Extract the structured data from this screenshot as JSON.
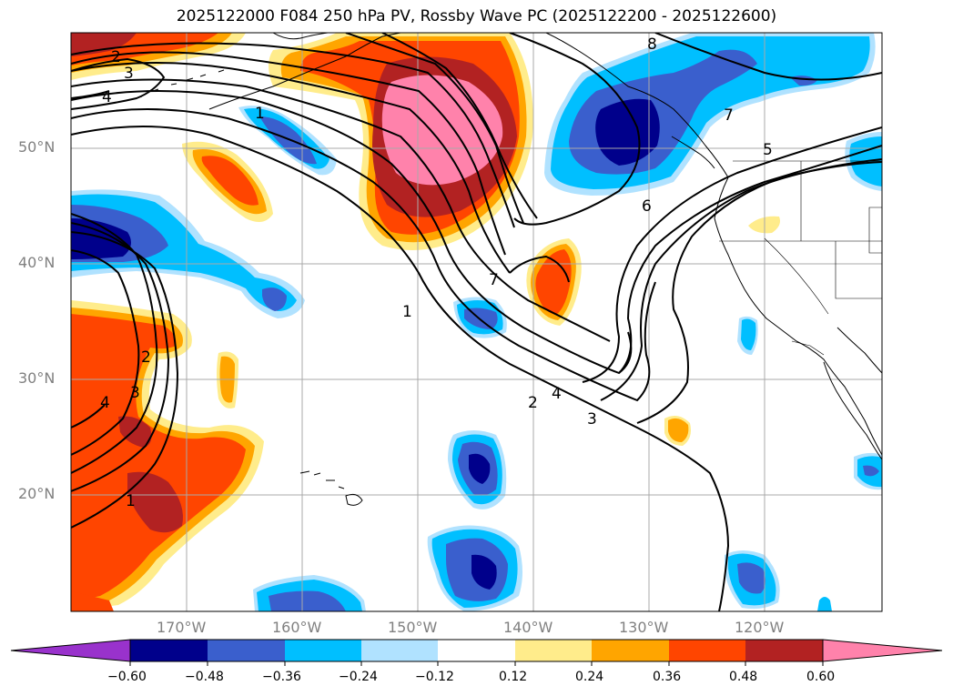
{
  "title": "2025122000 F084 250 hPa PV, Rossby Wave PC (2025122200 - 2025122600)",
  "lat_labels": [
    "50°N",
    "40°N",
    "30°N",
    "20°N"
  ],
  "lon_labels": [
    "170°W",
    "160°W",
    "150°W",
    "140°W",
    "130°W",
    "120°W"
  ],
  "contour_labels": [
    "1",
    "2",
    "3",
    "4",
    "5",
    "6",
    "7",
    "8"
  ],
  "colorbar": {
    "ticks": [
      "−0.60",
      "−0.48",
      "−0.36",
      "−0.24",
      "−0.12",
      "0.12",
      "0.24",
      "0.36",
      "0.48",
      "0.60"
    ],
    "colors": [
      "#9932cc",
      "#00008b",
      "#3a5fcd",
      "#00bfff",
      "#b0e2ff",
      "#ffffff",
      "#ffec8b",
      "#ffa500",
      "#ff4500",
      "#b22222",
      "#ff82ab"
    ]
  },
  "colors": {
    "pink": "#ff82ab",
    "dark_red": "#b22222",
    "red_orange": "#ff4500",
    "orange": "#ffa500",
    "light_yellow": "#ffec8b",
    "light_blue": "#b0e2ff",
    "deep_sky": "#00bfff",
    "royal_blue": "#3a5fcd",
    "navy": "#00008b",
    "purple": "#9932cc"
  }
}
